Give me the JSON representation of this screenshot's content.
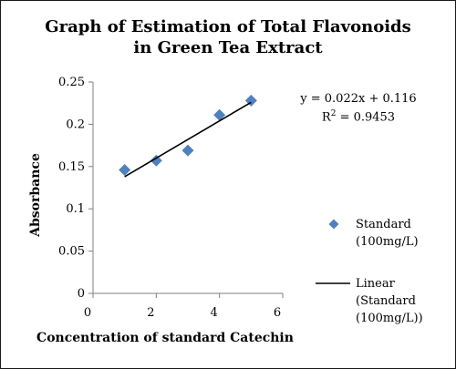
{
  "chart_data": {
    "type": "scatter",
    "title_lines": [
      "Graph of Estimation of Total Flavonoids",
      "in Green Tea Extract"
    ],
    "xlabel": "Concentration of  standard Catechin",
    "ylabel": "Absorbance",
    "xlim": [
      0,
      6
    ],
    "ylim": [
      0,
      0.25
    ],
    "x_ticks": [
      0,
      2,
      4,
      6
    ],
    "y_ticks": [
      0,
      0.05,
      0.1,
      0.15,
      0.2,
      0.25
    ],
    "x_tick_labels": [
      "0",
      "2",
      "4",
      "6"
    ],
    "y_tick_labels": [
      "0",
      "0.05",
      "0.1",
      "0.15",
      "0.2",
      "0.25"
    ],
    "grid": false,
    "legend_position": "right",
    "series": [
      {
        "name": "Standard (100mg/L)",
        "marker": "diamond",
        "color": "#4f81bd",
        "x": [
          1,
          2,
          3,
          4,
          5
        ],
        "y": [
          0.146,
          0.157,
          0.169,
          0.211,
          0.228
        ]
      }
    ],
    "trendline": {
      "name": "Linear (Standard (100mg/L))",
      "type": "linear",
      "slope": 0.022,
      "intercept": 0.116,
      "x_range": [
        1,
        5
      ],
      "color": "#000000",
      "equation_text": "y = 0.022x + 0.116",
      "r2_prefix": "R",
      "r2_exp": "2",
      "r2_value": " = 0.9453"
    },
    "legend": {
      "standard_lines": [
        "Standard",
        "(100mg/L)"
      ],
      "linear_lines": [
        "Linear",
        "(Standard",
        "(100mg/L))"
      ]
    }
  }
}
